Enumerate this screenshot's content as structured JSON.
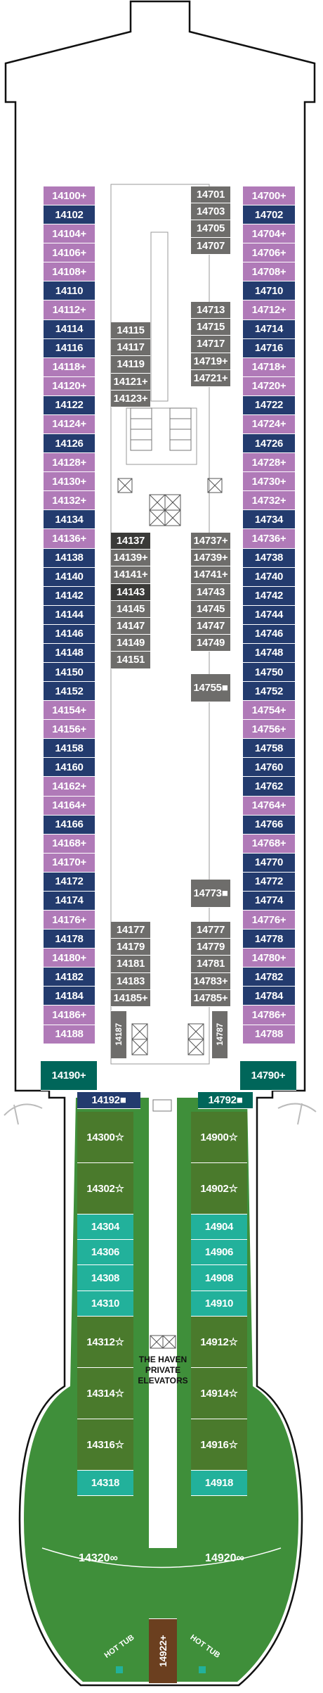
{
  "left_outer": [
    "14100+",
    "14102",
    "14104+",
    "14106+",
    "14108+",
    "14110",
    "14112+",
    "14114",
    "14116",
    "14118+",
    "14120+",
    "14122",
    "14124+",
    "14126",
    "14128+",
    "14130+",
    "14132+",
    "14134",
    "14136+",
    "14138",
    "14140",
    "14142",
    "14144",
    "14146",
    "14148",
    "14150",
    "14152",
    "14154+",
    "14156+",
    "14158",
    "14160",
    "14162+",
    "14164+",
    "14166",
    "14168+",
    "14170+",
    "14172",
    "14174",
    "14176+",
    "14178",
    "14180+",
    "14182",
    "14184",
    "14186+",
    "14188"
  ],
  "left_outer_types": [
    "purple",
    "navy",
    "purple",
    "purple",
    "purple",
    "navy",
    "purple",
    "navy",
    "navy",
    "purple",
    "purple",
    "navy",
    "purple",
    "navy",
    "purple",
    "purple",
    "purple",
    "navy",
    "purple",
    "navy",
    "navy",
    "navy",
    "navy",
    "navy",
    "navy",
    "navy",
    "navy",
    "purple",
    "purple",
    "navy",
    "navy",
    "purple",
    "purple",
    "navy",
    "purple",
    "purple",
    "navy",
    "navy",
    "purple",
    "navy",
    "purple",
    "navy",
    "navy",
    "purple",
    "purple"
  ],
  "right_outer": [
    "14700+",
    "14702",
    "14704+",
    "14706+",
    "14708+",
    "14710",
    "14712+",
    "14714",
    "14716",
    "14718+",
    "14720+",
    "14722",
    "14724+",
    "14726",
    "14728+",
    "14730+",
    "14732+",
    "14734",
    "14736+",
    "14738",
    "14740",
    "14742",
    "14744",
    "14746",
    "14748",
    "14750",
    "14752",
    "14754+",
    "14756+",
    "14758",
    "14760",
    "14762",
    "14764+",
    "14766",
    "14768+",
    "14770",
    "14772",
    "14774",
    "14776+",
    "14778",
    "14780+",
    "14782",
    "14784",
    "14786+",
    "14788"
  ],
  "right_outer_types": [
    "purple",
    "navy",
    "purple",
    "purple",
    "purple",
    "navy",
    "purple",
    "navy",
    "navy",
    "purple",
    "purple",
    "navy",
    "purple",
    "navy",
    "purple",
    "purple",
    "purple",
    "navy",
    "purple",
    "navy",
    "navy",
    "navy",
    "navy",
    "navy",
    "navy",
    "navy",
    "navy",
    "purple",
    "purple",
    "navy",
    "navy",
    "navy",
    "purple",
    "navy",
    "purple",
    "navy",
    "navy",
    "navy",
    "purple",
    "navy",
    "purple",
    "navy",
    "navy",
    "purple",
    "purple"
  ],
  "inner_left_a": [
    "14115",
    "14117",
    "14119",
    "14121+",
    "14123+"
  ],
  "inner_left_b": [
    "14137",
    "14139+",
    "14141+",
    "14143",
    "14145",
    "14147",
    "14149",
    "14151"
  ],
  "inner_left_c": [
    "14177",
    "14179",
    "14181",
    "14183",
    "14185+"
  ],
  "inner_right_top": [
    "14701",
    "14703",
    "14705",
    "14707"
  ],
  "inner_right_a": [
    "14713",
    "14715",
    "14717",
    "14719+",
    "14721+"
  ],
  "inner_right_b": [
    "14737+",
    "14739+",
    "14741+",
    "14743",
    "14745",
    "14747",
    "14749"
  ],
  "inner_right_single": [
    "14755■",
    "14773■"
  ],
  "inner_right_c": [
    "14777",
    "14779",
    "14781",
    "14783+",
    "14785+"
  ],
  "vertical_cabins": [
    "14187",
    "14787"
  ],
  "corner_suites": [
    "14190+",
    "14790+",
    "14192■",
    "14792■"
  ],
  "haven_left": [
    {
      "num": "14300☆",
      "type": "green",
      "h": 2
    },
    {
      "num": "14302☆",
      "type": "green",
      "h": 2
    },
    {
      "num": "14304",
      "type": "teal",
      "h": 1
    },
    {
      "num": "14306",
      "type": "teal",
      "h": 1
    },
    {
      "num": "14308",
      "type": "teal",
      "h": 1
    },
    {
      "num": "14310",
      "type": "teal",
      "h": 1
    },
    {
      "num": "14312☆",
      "type": "green",
      "h": 2
    },
    {
      "num": "14314☆",
      "type": "green",
      "h": 2
    },
    {
      "num": "14316☆",
      "type": "green",
      "h": 2
    },
    {
      "num": "14318",
      "type": "teal",
      "h": 1
    }
  ],
  "haven_right": [
    {
      "num": "14900☆",
      "type": "green",
      "h": 2
    },
    {
      "num": "14902☆",
      "type": "green",
      "h": 2
    },
    {
      "num": "14904",
      "type": "teal",
      "h": 1
    },
    {
      "num": "14906",
      "type": "teal",
      "h": 1
    },
    {
      "num": "14908",
      "type": "teal",
      "h": 1
    },
    {
      "num": "14910",
      "type": "teal",
      "h": 1
    },
    {
      "num": "14912☆",
      "type": "green",
      "h": 2
    },
    {
      "num": "14914☆",
      "type": "green",
      "h": 2
    },
    {
      "num": "14916☆",
      "type": "green",
      "h": 2
    },
    {
      "num": "14918",
      "type": "teal",
      "h": 1
    }
  ],
  "stern": {
    "left": "14320∞",
    "right": "14920∞",
    "center": "14922+",
    "hot_tub_left": "HOT TUB",
    "hot_tub_right": "HOT TUB"
  },
  "elevator_label": [
    "THE HAVEN",
    "PRIVATE",
    "ELEVATORS"
  ],
  "colors": {
    "purple": "#b07ab8",
    "navy": "#233b6e",
    "grey": "#6e6d6b",
    "dark": "#3a3a38",
    "green": "#4a7a2c",
    "teal": "#22b19b",
    "haven_floor": "#3f8f3a",
    "brown": "#6b3f1f",
    "darkteal": "#00665a"
  }
}
